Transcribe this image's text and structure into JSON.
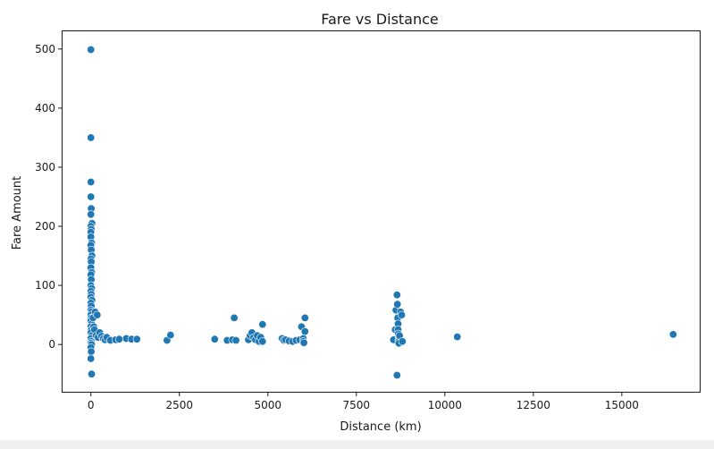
{
  "chart_data": {
    "type": "scatter",
    "title": "Fare vs Distance",
    "xlabel": "Distance (km)",
    "ylabel": "Fare Amount",
    "xlim": [
      -800,
      17200
    ],
    "ylim": [
      -80,
      530
    ],
    "xticks": [
      0,
      2500,
      5000,
      7500,
      10000,
      12500,
      15000
    ],
    "xtick_labels": [
      "0",
      "2500",
      "5000",
      "7500",
      "10000",
      "12500",
      "15000"
    ],
    "yticks": [
      0,
      100,
      200,
      300,
      400,
      500
    ],
    "ytick_labels": [
      "0",
      "100",
      "200",
      "300",
      "400",
      "500"
    ],
    "grid": false,
    "marker_color": "#1f77b4",
    "points": [
      [
        0,
        499
      ],
      [
        0,
        350
      ],
      [
        0,
        275
      ],
      [
        0,
        250
      ],
      [
        10,
        230
      ],
      [
        0,
        220
      ],
      [
        30,
        205
      ],
      [
        0,
        200
      ],
      [
        10,
        195
      ],
      [
        0,
        190
      ],
      [
        0,
        182
      ],
      [
        20,
        172
      ],
      [
        0,
        168
      ],
      [
        10,
        160
      ],
      [
        30,
        150
      ],
      [
        0,
        145
      ],
      [
        10,
        140
      ],
      [
        0,
        130
      ],
      [
        20,
        122
      ],
      [
        0,
        118
      ],
      [
        10,
        110
      ],
      [
        0,
        100
      ],
      [
        20,
        95
      ],
      [
        0,
        90
      ],
      [
        10,
        85
      ],
      [
        0,
        80
      ],
      [
        30,
        75
      ],
      [
        0,
        70
      ],
      [
        10,
        65
      ],
      [
        0,
        58
      ],
      [
        20,
        55
      ],
      [
        0,
        50
      ],
      [
        10,
        45
      ],
      [
        0,
        40
      ],
      [
        20,
        35
      ],
      [
        0,
        30
      ],
      [
        10,
        25
      ],
      [
        0,
        20
      ],
      [
        30,
        15
      ],
      [
        0,
        10
      ],
      [
        10,
        5
      ],
      [
        0,
        2
      ],
      [
        20,
        0
      ],
      [
        0,
        -5
      ],
      [
        10,
        -12
      ],
      [
        0,
        -24
      ],
      [
        20,
        -50
      ],
      [
        60,
        45
      ],
      [
        80,
        30
      ],
      [
        100,
        25
      ],
      [
        120,
        55
      ],
      [
        150,
        15
      ],
      [
        180,
        50
      ],
      [
        200,
        12
      ],
      [
        250,
        20
      ],
      [
        300,
        14
      ],
      [
        350,
        10
      ],
      [
        400,
        8
      ],
      [
        450,
        12
      ],
      [
        550,
        7
      ],
      [
        700,
        8
      ],
      [
        800,
        9
      ],
      [
        1000,
        10
      ],
      [
        1150,
        9
      ],
      [
        1300,
        9
      ],
      [
        2150,
        7
      ],
      [
        2250,
        16
      ],
      [
        3500,
        9
      ],
      [
        3850,
        7
      ],
      [
        4000,
        8
      ],
      [
        4050,
        45
      ],
      [
        4100,
        7
      ],
      [
        4450,
        8
      ],
      [
        4500,
        15
      ],
      [
        4550,
        20
      ],
      [
        4600,
        12
      ],
      [
        4650,
        8
      ],
      [
        4700,
        15
      ],
      [
        4750,
        5
      ],
      [
        4800,
        12
      ],
      [
        4850,
        34
      ],
      [
        4850,
        5
      ],
      [
        5400,
        10
      ],
      [
        5450,
        7
      ],
      [
        5500,
        8
      ],
      [
        5600,
        6
      ],
      [
        5700,
        5
      ],
      [
        5800,
        7
      ],
      [
        5900,
        8
      ],
      [
        5950,
        30
      ],
      [
        6000,
        10
      ],
      [
        6000,
        5
      ],
      [
        6050,
        45
      ],
      [
        6050,
        22
      ],
      [
        6020,
        3
      ],
      [
        8550,
        8
      ],
      [
        8600,
        25
      ],
      [
        8620,
        58
      ],
      [
        8650,
        84
      ],
      [
        8660,
        68
      ],
      [
        8670,
        45
      ],
      [
        8680,
        35
      ],
      [
        8680,
        25
      ],
      [
        8690,
        18
      ],
      [
        8700,
        12
      ],
      [
        8700,
        8
      ],
      [
        8700,
        5
      ],
      [
        8700,
        2
      ],
      [
        8720,
        15
      ],
      [
        8750,
        55
      ],
      [
        8780,
        50
      ],
      [
        8800,
        5
      ],
      [
        8650,
        -52
      ],
      [
        10350,
        13
      ],
      [
        16450,
        17
      ]
    ]
  }
}
